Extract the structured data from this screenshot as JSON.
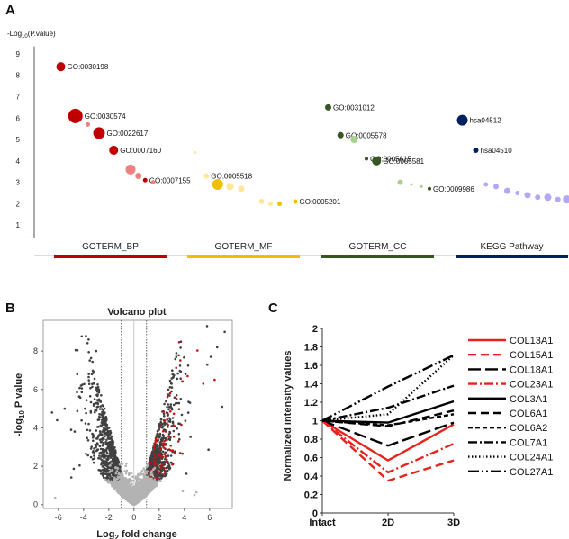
{
  "panels": {
    "a": {
      "letter": "A"
    },
    "b": {
      "letter": "B"
    },
    "c": {
      "letter": "C"
    }
  },
  "chart_data": [
    {
      "type": "scatter",
      "panel": "A",
      "subtype": "bubble",
      "ylabel": "-Log10(P.value)",
      "ylabel_main": "-Log",
      "ylabel_sub": "10",
      "ylabel_rest": "(P.value)",
      "yticks": [
        1,
        2,
        3,
        4,
        5,
        6,
        7,
        8,
        9
      ],
      "ylim": [
        0,
        9.5
      ],
      "categories": [
        {
          "name": "GOTERM_BP",
          "color": "#c00000"
        },
        {
          "name": "GOTERM_MF",
          "color": "#f0c000"
        },
        {
          "name": "GOTERM_CC",
          "color": "#375623"
        },
        {
          "name": "KEGG Pathway",
          "color": "#002060"
        }
      ],
      "points": [
        {
          "cat": 0,
          "pos": 0.06,
          "y": 8.4,
          "size": 5,
          "color": "#c00000",
          "label": "GO:0030198"
        },
        {
          "cat": 0,
          "pos": 0.19,
          "y": 6.1,
          "size": 8,
          "color": "#c00000",
          "label": "GO:0030574"
        },
        {
          "cat": 0,
          "pos": 0.3,
          "y": 5.7,
          "size": 2.5,
          "color": "#f08080",
          "label": ""
        },
        {
          "cat": 0,
          "pos": 0.4,
          "y": 5.3,
          "size": 6.5,
          "color": "#c00000",
          "label": "GO:0022617"
        },
        {
          "cat": 0,
          "pos": 0.53,
          "y": 4.5,
          "size": 5,
          "color": "#c00000",
          "label": "GO:0007160"
        },
        {
          "cat": 0,
          "pos": 0.68,
          "y": 3.6,
          "size": 5.5,
          "color": "#f08080",
          "label": ""
        },
        {
          "cat": 0,
          "pos": 0.75,
          "y": 3.3,
          "size": 3.5,
          "color": "#f08080",
          "label": ""
        },
        {
          "cat": 0,
          "pos": 0.81,
          "y": 3.1,
          "size": 2.5,
          "color": "#c00000",
          "label": "GO:0007155"
        },
        {
          "cat": 0,
          "pos": 0.88,
          "y": 3.0,
          "size": 2.5,
          "color": "#f08080",
          "label": ""
        },
        {
          "cat": 1,
          "pos": 0.07,
          "y": 4.4,
          "size": 1.5,
          "color": "#ffe699",
          "label": ""
        },
        {
          "cat": 1,
          "pos": 0.17,
          "y": 3.3,
          "size": 3,
          "color": "#ffe699",
          "label": "GO:0005518"
        },
        {
          "cat": 1,
          "pos": 0.27,
          "y": 2.9,
          "size": 6,
          "color": "#f0c000",
          "label": ""
        },
        {
          "cat": 1,
          "pos": 0.38,
          "y": 2.8,
          "size": 4,
          "color": "#ffe699",
          "label": ""
        },
        {
          "cat": 1,
          "pos": 0.48,
          "y": 2.7,
          "size": 3.5,
          "color": "#ffe699",
          "label": ""
        },
        {
          "cat": 1,
          "pos": 0.66,
          "y": 2.1,
          "size": 3,
          "color": "#ffe699",
          "label": ""
        },
        {
          "cat": 1,
          "pos": 0.74,
          "y": 2.0,
          "size": 2.5,
          "color": "#ffe699",
          "label": ""
        },
        {
          "cat": 1,
          "pos": 0.82,
          "y": 2.0,
          "size": 2.5,
          "color": "#f0c000",
          "label": ""
        },
        {
          "cat": 1,
          "pos": 0.96,
          "y": 2.1,
          "size": 2.5,
          "color": "#f0c000",
          "label": "GO:0005201"
        },
        {
          "cat": 2,
          "pos": 0.06,
          "y": 6.5,
          "size": 3.5,
          "color": "#375623",
          "label": "GO:0031012"
        },
        {
          "cat": 2,
          "pos": 0.17,
          "y": 5.2,
          "size": 3.5,
          "color": "#375623",
          "label": "GO:0005578"
        },
        {
          "cat": 2,
          "pos": 0.29,
          "y": 5.0,
          "size": 4,
          "color": "#a9d18e",
          "label": ""
        },
        {
          "cat": 2,
          "pos": 0.4,
          "y": 4.1,
          "size": 2,
          "color": "#375623",
          "label": "GO:0005615"
        },
        {
          "cat": 2,
          "pos": 0.49,
          "y": 4.0,
          "size": 5,
          "color": "#375623",
          "label": "GO:0005581"
        },
        {
          "cat": 2,
          "pos": 0.7,
          "y": 3.0,
          "size": 3,
          "color": "#a9d18e",
          "label": ""
        },
        {
          "cat": 2,
          "pos": 0.8,
          "y": 2.9,
          "size": 1.5,
          "color": "#a9d18e",
          "label": ""
        },
        {
          "cat": 2,
          "pos": 0.89,
          "y": 2.8,
          "size": 1.5,
          "color": "#a9d18e",
          "label": ""
        },
        {
          "cat": 2,
          "pos": 0.96,
          "y": 2.7,
          "size": 2,
          "color": "#375623",
          "label": "GO:0009986"
        },
        {
          "cat": 3,
          "pos": 0.06,
          "y": 5.9,
          "size": 6,
          "color": "#002060",
          "label": "hsa04512"
        },
        {
          "cat": 3,
          "pos": 0.18,
          "y": 4.5,
          "size": 3,
          "color": "#002060",
          "label": "hsa04510"
        },
        {
          "cat": 3,
          "pos": 0.27,
          "y": 2.9,
          "size": 2.5,
          "color": "#b4a7f5",
          "label": ""
        },
        {
          "cat": 3,
          "pos": 0.36,
          "y": 2.8,
          "size": 3,
          "color": "#b4a7f5",
          "label": ""
        },
        {
          "cat": 3,
          "pos": 0.46,
          "y": 2.6,
          "size": 3.5,
          "color": "#b4a7f5",
          "label": ""
        },
        {
          "cat": 3,
          "pos": 0.55,
          "y": 2.5,
          "size": 2.5,
          "color": "#b4a7f5",
          "label": ""
        },
        {
          "cat": 3,
          "pos": 0.64,
          "y": 2.4,
          "size": 3.5,
          "color": "#b4a7f5",
          "label": ""
        },
        {
          "cat": 3,
          "pos": 0.73,
          "y": 2.3,
          "size": 3,
          "color": "#b4a7f5",
          "label": ""
        },
        {
          "cat": 3,
          "pos": 0.82,
          "y": 2.3,
          "size": 4,
          "color": "#b4a7f5",
          "label": ""
        },
        {
          "cat": 3,
          "pos": 0.91,
          "y": 2.2,
          "size": 3,
          "color": "#b4a7f5",
          "label": ""
        },
        {
          "cat": 3,
          "pos": 0.99,
          "y": 2.2,
          "size": 4.5,
          "color": "#b4a7f5",
          "label": ""
        }
      ]
    },
    {
      "type": "scatter",
      "panel": "B",
      "subtype": "volcano",
      "title": "Volcano plot",
      "xlabel": "Log2 fold change",
      "xlabel_main": "Log",
      "xlabel_sub": "2",
      "xlabel_rest": " fold change",
      "ylabel": "-log10 P value",
      "ylabel_main": "-log",
      "ylabel_sub": "10",
      "ylabel_rest": " P value",
      "xticks": [
        -6,
        -4,
        -2,
        0,
        2,
        4,
        6
      ],
      "yticks": [
        0,
        2,
        4,
        6,
        8
      ],
      "xlim": [
        -7.2,
        7.8
      ],
      "ylim": [
        -0.2,
        9.6
      ],
      "fold_change_cutoff": [
        -1,
        1
      ],
      "colors": {
        "insignificant": "#b3b3b3",
        "nonsig_fc": "#404040",
        "significant": "#cc1111"
      },
      "outliers": [
        [
          -6.5,
          4.8
        ],
        [
          -4.5,
          6.8
        ],
        [
          -3.6,
          8.6
        ],
        [
          -5.5,
          5.0
        ],
        [
          -6.1,
          4.4
        ],
        [
          -4.2,
          6.2
        ],
        [
          5.8,
          9.3
        ],
        [
          6.6,
          8.2
        ],
        [
          6.1,
          7.7
        ],
        [
          7.2,
          9.0
        ],
        [
          5.5,
          6.3
        ],
        [
          7.0,
          5.1
        ],
        [
          6.4,
          6.5
        ],
        [
          -3.0,
          8.0
        ]
      ]
    },
    {
      "type": "line",
      "panel": "C",
      "ylabel": "Normalized intensity values",
      "categories": [
        "Intact",
        "2D",
        "3D"
      ],
      "yticks": [
        0,
        0.2,
        0.4,
        0.6,
        0.8,
        1,
        1.2,
        1.4,
        1.6,
        1.8,
        2
      ],
      "ytick_labels": [
        "0",
        "0.2",
        "0.4",
        "0.6",
        "0.8",
        "1",
        "1.2",
        "1.4",
        "1.6",
        "1.8",
        "2"
      ],
      "ylim": [
        0,
        2
      ],
      "series": [
        {
          "name": "COL13A1",
          "values": [
            1,
            0.57,
            0.96
          ],
          "color": "#e8231c",
          "dash": "solid"
        },
        {
          "name": "COL15A1",
          "values": [
            1,
            0.35,
            0.57
          ],
          "color": "#e8231c",
          "dash": "dashed"
        },
        {
          "name": "COL18A1",
          "values": [
            1,
            0.73,
            0.98
          ],
          "color": "#000000",
          "dash": "longdash"
        },
        {
          "name": "COL23A1",
          "values": [
            1,
            0.44,
            0.75
          ],
          "color": "#e8231c",
          "dash": "dashdot"
        },
        {
          "name": "COL3A1",
          "values": [
            1,
            0.98,
            1.21
          ],
          "color": "#000000",
          "dash": "solid"
        },
        {
          "name": "COL6A1",
          "values": [
            1,
            0.94,
            1.11
          ],
          "color": "#000000",
          "dash": "dashed"
        },
        {
          "name": "COL6A2",
          "values": [
            1,
            0.95,
            1.07
          ],
          "color": "#000000",
          "dash": "shortdash"
        },
        {
          "name": "COL7A1",
          "values": [
            1,
            1.14,
            1.38
          ],
          "color": "#000000",
          "dash": "dashdot"
        },
        {
          "name": "COL24A1",
          "values": [
            1,
            1.07,
            1.71
          ],
          "color": "#000000",
          "dash": "dotted"
        },
        {
          "name": "COL27A1",
          "values": [
            1,
            1.37,
            1.71
          ],
          "color": "#000000",
          "dash": "dashdotdot"
        }
      ]
    }
  ]
}
